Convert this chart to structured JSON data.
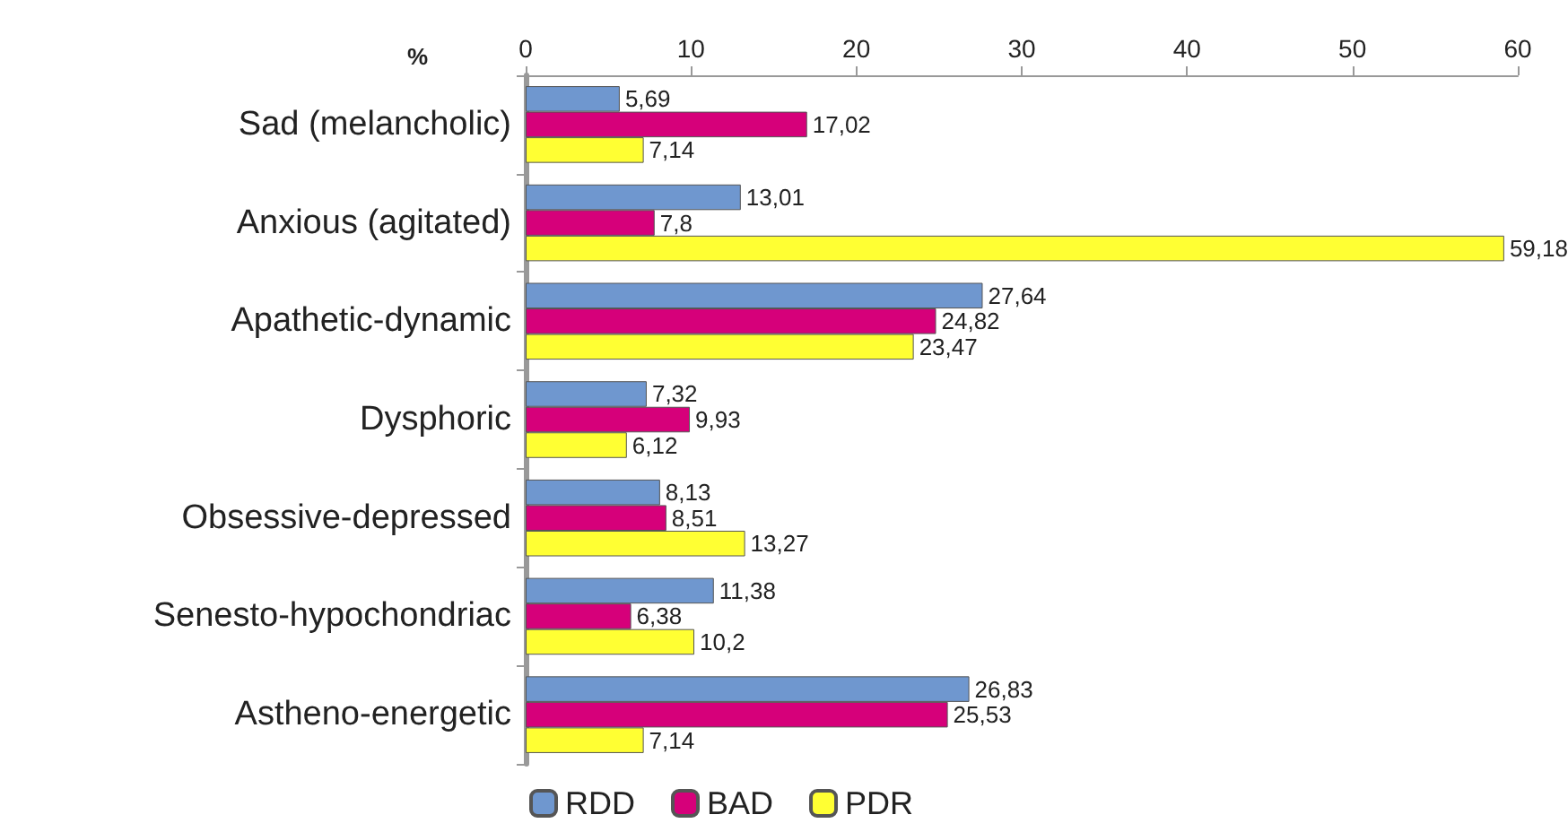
{
  "chart_data": {
    "type": "bar",
    "orientation": "horizontal",
    "xlabel": "%",
    "categories": [
      "Sad (melancholic)",
      "Anxious (agitated)",
      "Apathetic-dynamic",
      "Dysphoric",
      "Obsessive-depressed",
      "Senesto-hypochondriac",
      "Astheno-energetic"
    ],
    "series": [
      {
        "name": "RDD",
        "color": "#6f97cf",
        "values": [
          5.69,
          13.01,
          27.64,
          7.32,
          8.13,
          11.38,
          26.83
        ],
        "value_labels": [
          "5,69",
          "13,01",
          "27,64",
          "7,32",
          "8,13",
          "11,38",
          "26,83"
        ]
      },
      {
        "name": "BAD",
        "color": "#d6007a",
        "values": [
          17.02,
          7.8,
          24.82,
          9.93,
          8.51,
          6.38,
          25.53
        ],
        "value_labels": [
          "17,02",
          "7,8",
          "24,82",
          "9,93",
          "8,51",
          "6,38",
          "25,53"
        ]
      },
      {
        "name": "PDR",
        "color": "#ffff33",
        "values": [
          7.14,
          59.18,
          23.47,
          6.12,
          13.27,
          10.2,
          7.14
        ],
        "value_labels": [
          "7,14",
          "59,18",
          "23,47",
          "6,12",
          "13,27",
          "10,2",
          "7,14"
        ]
      }
    ],
    "xlim": [
      0,
      60
    ],
    "xticks": [
      0,
      10,
      20,
      30,
      40,
      50,
      60
    ],
    "grid": false,
    "legend": "bottom"
  }
}
